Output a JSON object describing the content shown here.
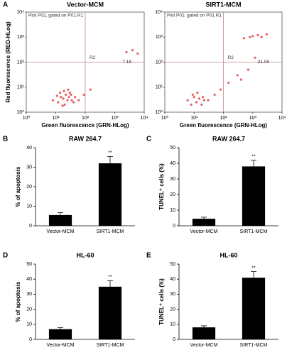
{
  "chart_data": [
    {
      "type": "scatter",
      "panel": "A",
      "title": "Vector-MCM",
      "subtitle": "Plot P02, gated on P01.R1",
      "xlabel": "Green fluorescence (GRN-HLog)",
      "ylabel": "Red fluorescence (RED-HLog)",
      "log": true,
      "xlim": [
        1,
        10000
      ],
      "ylim": [
        1,
        10000
      ],
      "xticks": [
        {
          "value": 1,
          "label": "10⁰"
        },
        {
          "value": 10,
          "label": "10¹"
        },
        {
          "value": 100,
          "label": "10²"
        },
        {
          "value": 1000,
          "label": "10³"
        },
        {
          "value": 10000,
          "label": "10⁴"
        }
      ],
      "yticks": [
        {
          "value": 1,
          "label": "10⁰"
        },
        {
          "value": 10,
          "label": "10¹"
        },
        {
          "value": 100,
          "label": "10²"
        },
        {
          "value": 1000,
          "label": "10³"
        },
        {
          "value": 10000,
          "label": "10⁴"
        }
      ],
      "color": "#e02828",
      "gate": {
        "x": 100,
        "y": 100,
        "label": "R2",
        "value": 7.18
      },
      "x": [
        8,
        12,
        15,
        18,
        20,
        22,
        25,
        28,
        30,
        35,
        40,
        45,
        14,
        19,
        26,
        33,
        11,
        17,
        60,
        90,
        150,
        2500,
        4000,
        6000
      ],
      "y": [
        3,
        2.5,
        4,
        3.5,
        2,
        5,
        3,
        4,
        6,
        3,
        2.5,
        4,
        6,
        7,
        8,
        5,
        4.5,
        1.8,
        3,
        5,
        8,
        250,
        300,
        220
      ]
    },
    {
      "type": "scatter",
      "title": "SIRT1-MCM",
      "subtitle": "Plot P02, gated on P01.R1",
      "xlabel": "Green fluorescence (GRN-HLog)",
      "log": true,
      "xlim": [
        1,
        10000
      ],
      "ylim": [
        1,
        10000
      ],
      "xticks": [
        {
          "value": 1,
          "label": "10⁰"
        },
        {
          "value": 10,
          "label": "10¹"
        },
        {
          "value": 100,
          "label": "10²"
        },
        {
          "value": 1000,
          "label": "10³"
        },
        {
          "value": 10000,
          "label": "10⁴"
        }
      ],
      "yticks": [
        {
          "value": 1,
          "label": "10⁰"
        },
        {
          "value": 10,
          "label": "10¹"
        },
        {
          "value": 100,
          "label": "10²"
        },
        {
          "value": 1000,
          "label": "10³"
        },
        {
          "value": 10000,
          "label": "10⁴"
        }
      ],
      "color": "#e02828",
      "gate": {
        "x": 100,
        "y": 100,
        "label": "R2",
        "value": 31.05
      },
      "x": [
        6,
        8,
        10,
        12,
        15,
        18,
        22,
        9,
        13,
        20,
        30,
        50,
        80,
        150,
        300,
        500,
        800,
        1000,
        1500,
        2000,
        3000,
        700,
        1200,
        400
      ],
      "y": [
        3,
        2,
        4,
        2.5,
        3.5,
        2,
        3,
        5,
        6,
        4,
        3,
        5,
        8,
        15,
        30,
        900,
        1000,
        1100,
        1200,
        1000,
        1300,
        50,
        150,
        20
      ]
    },
    {
      "type": "bar",
      "panel": "B",
      "title": "RAW 264.7",
      "ylabel": "% of apoptosis",
      "categories": [
        "Vector-MCM",
        "SIRT1-MCM"
      ],
      "values": [
        5.5,
        32
      ],
      "errors": [
        1.2,
        3.5
      ],
      "annotation": "**",
      "color": "#000000",
      "ylim": [
        0,
        40
      ],
      "yticks": [
        0,
        10,
        20,
        30,
        40
      ]
    },
    {
      "type": "bar",
      "panel": "C",
      "title": "RAW 264.7",
      "ylabel": "TUNEL⁺ cells (%)",
      "categories": [
        "Vector-MCM",
        "SIRT1-MCM"
      ],
      "values": [
        4.5,
        38
      ],
      "errors": [
        1,
        4
      ],
      "annotation": "**",
      "color": "#000000",
      "ylim": [
        0,
        50
      ],
      "yticks": [
        0,
        10,
        20,
        30,
        40,
        50
      ]
    },
    {
      "type": "bar",
      "panel": "D",
      "title": "HL-60",
      "ylabel": "% of apoptosis",
      "categories": [
        "Vector-MCM",
        "SIRT1-MCM"
      ],
      "values": [
        6.8,
        35
      ],
      "errors": [
        1,
        4
      ],
      "annotation": "**",
      "color": "#000000",
      "ylim": [
        0,
        50
      ],
      "yticks": [
        0,
        10,
        20,
        30,
        40,
        50
      ]
    },
    {
      "type": "bar",
      "panel": "E",
      "title": "HL-60",
      "ylabel": "TUNEL⁺ cells (%)",
      "categories": [
        "Vector-MCM",
        "SIRT1-MCM"
      ],
      "values": [
        8,
        41
      ],
      "errors": [
        1,
        4
      ],
      "annotation": "**",
      "color": "#000000",
      "ylim": [
        0,
        50
      ],
      "yticks": [
        0,
        10,
        20,
        30,
        40,
        50
      ]
    }
  ]
}
